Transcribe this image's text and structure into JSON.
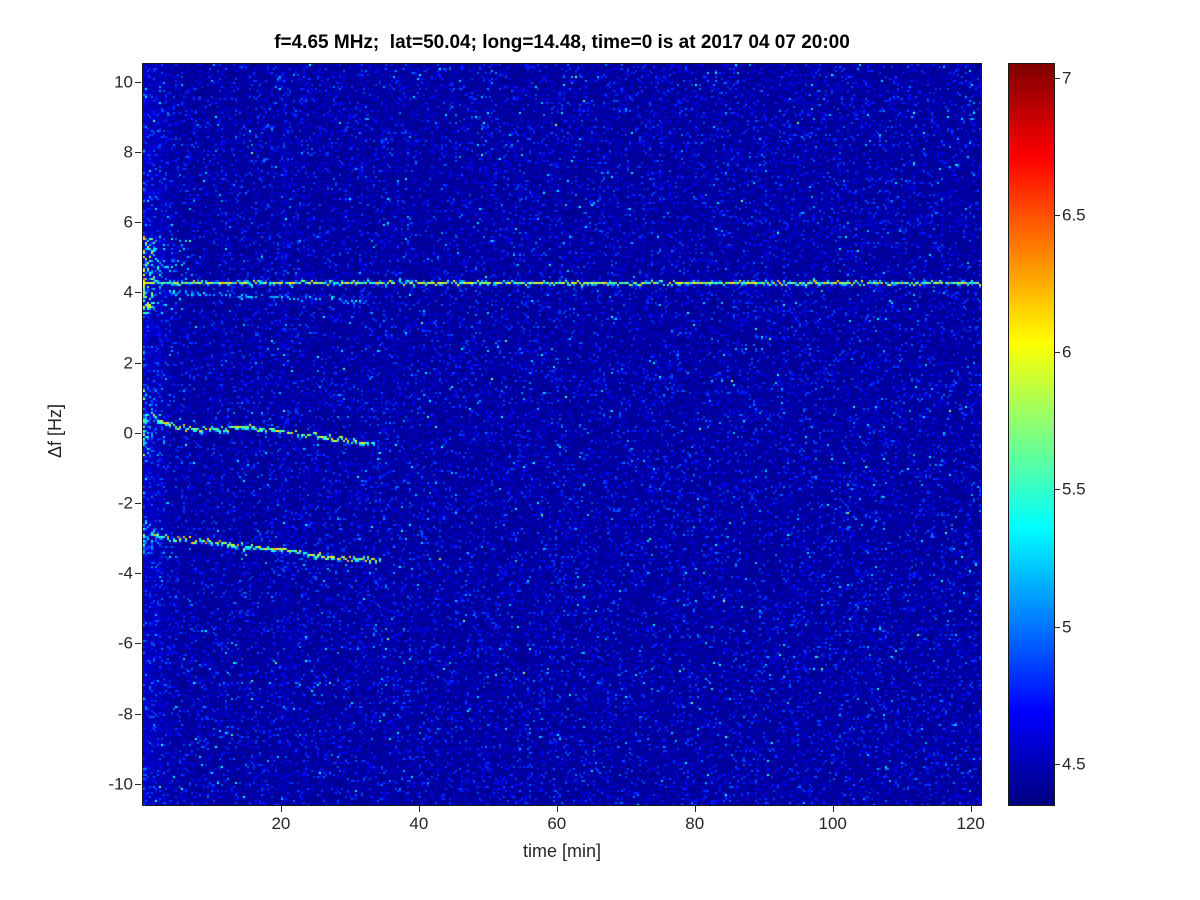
{
  "chart_data": {
    "type": "heatmap",
    "title": "f=4.65 MHz;  lat=50.04; long=14.48, time=0 is at 2017 04 07 20:00",
    "xlabel": "time [min]",
    "ylabel": "Δf [Hz]",
    "x_range": [
      0,
      121.5
    ],
    "y_range": [
      -10.6,
      10.5
    ],
    "x_ticks": [
      20,
      40,
      60,
      80,
      100,
      120
    ],
    "y_ticks": [
      -10,
      -8,
      -6,
      -4,
      -2,
      0,
      2,
      4,
      6,
      8,
      10
    ],
    "colormap": "jet",
    "color_range": [
      4.35,
      7.05
    ],
    "colorbar_ticks": [
      4.5,
      5,
      5.5,
      6,
      6.5,
      7
    ],
    "grid": false,
    "legend": "none",
    "noise": {
      "base": 4.37,
      "speckle_max": 5.6
    },
    "features": [
      {
        "name": "persistent-doppler-line",
        "kind": "hline",
        "y": 4.25,
        "x_start": 0,
        "x_end": 121.5,
        "value": [
          5.2,
          6.2
        ]
      },
      {
        "name": "fading-sub-line",
        "kind": "segment",
        "points": [
          [
            4,
            4.0
          ],
          [
            33,
            3.75
          ]
        ],
        "gap": 0.4,
        "value": [
          4.85,
          5.4
        ]
      },
      {
        "name": "trace-near-zero-hz",
        "kind": "path",
        "points": [
          [
            1.2,
            0.55
          ],
          [
            3,
            0.3
          ],
          [
            6,
            0.15
          ],
          [
            10,
            0.1
          ],
          [
            14,
            0.18
          ],
          [
            18,
            0.12
          ],
          [
            22,
            0.0
          ],
          [
            26,
            -0.1
          ],
          [
            29,
            -0.2
          ],
          [
            33.5,
            -0.3
          ]
        ],
        "value": [
          5.4,
          6.2
        ]
      },
      {
        "name": "trace-minus-three-hz",
        "kind": "path",
        "points": [
          [
            1.2,
            -2.85
          ],
          [
            4,
            -3.0
          ],
          [
            8,
            -3.05
          ],
          [
            12,
            -3.15
          ],
          [
            16,
            -3.25
          ],
          [
            20,
            -3.3
          ],
          [
            24,
            -3.45
          ],
          [
            28,
            -3.55
          ],
          [
            34.5,
            -3.55
          ]
        ],
        "value": [
          5.4,
          6.3
        ]
      },
      {
        "name": "startup-burst-main",
        "kind": "blob",
        "x": [
          0,
          7
        ],
        "y": [
          3.4,
          5.6
        ],
        "value": [
          4.9,
          6.5
        ]
      },
      {
        "name": "startup-burst-zero",
        "kind": "blob",
        "x": [
          0,
          3
        ],
        "y": [
          -0.6,
          1.3
        ],
        "value": [
          4.8,
          5.9
        ]
      },
      {
        "name": "startup-burst-minus3",
        "kind": "blob",
        "x": [
          0,
          3
        ],
        "y": [
          -3.4,
          -2.4
        ],
        "value": [
          4.8,
          5.9
        ]
      }
    ]
  }
}
